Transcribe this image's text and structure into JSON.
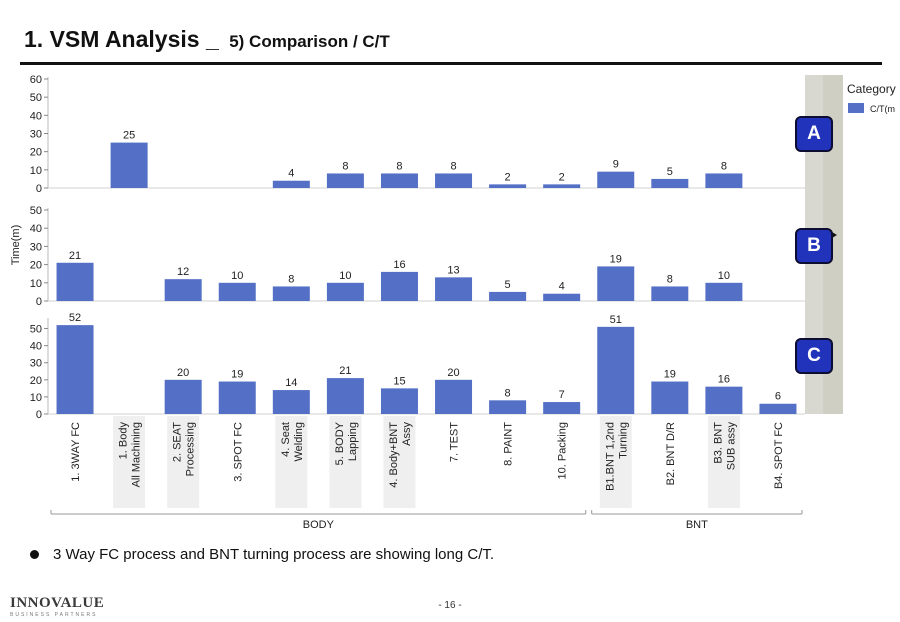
{
  "title": {
    "main": "1. VSM Analysis _",
    "sub": "5) Comparison / C/T"
  },
  "legend": {
    "title": "Category",
    "item": "C/T(m"
  },
  "panel_badges": [
    "A",
    "B",
    "C"
  ],
  "bullet": "3 Way FC process and BNT turning process are showing long C/T.",
  "footer": {
    "logo": "INNOVALUE",
    "tagline": "BUSINESS PARTNERS",
    "page": "- 16 -"
  },
  "colors": {
    "bar": "#5470c6",
    "badge": "#2233bb",
    "band": "#d8d8d0",
    "band_dark": "#cfcfc3"
  },
  "chart_data": {
    "type": "bar",
    "ylabel": "Time(m)",
    "categories": [
      "1. 3WAY FC",
      "1. Body All Machining",
      "2. SEAT Processing",
      "3. SPOT FC",
      "4. Seat Welding",
      "5. BODY Lapping",
      "4. Body+BNT Assy",
      "7. TEST",
      "8. PAINT",
      "10. Packing",
      "B1.BNT 1,2nd Turning",
      "B2. BNT D/R",
      "B3. BNT SUB assy",
      "B4. SPOT FC"
    ],
    "groups": [
      {
        "label": "BODY",
        "count": 10
      },
      {
        "label": "BNT",
        "count": 4
      }
    ],
    "panels": [
      {
        "name": "A",
        "ylim": [
          0,
          60
        ],
        "ticks": [
          0,
          10,
          20,
          30,
          40,
          50,
          60
        ],
        "values": [
          null,
          25,
          null,
          null,
          4,
          8,
          8,
          8,
          2,
          2,
          9,
          5,
          8,
          null
        ]
      },
      {
        "name": "B",
        "ylim": [
          0,
          50
        ],
        "ticks": [
          0,
          10,
          20,
          30,
          40,
          50
        ],
        "values": [
          21,
          null,
          12,
          10,
          8,
          10,
          16,
          13,
          5,
          4,
          19,
          8,
          10,
          null
        ]
      },
      {
        "name": "C",
        "ylim": [
          0,
          55
        ],
        "ticks": [
          0,
          10,
          20,
          30,
          40,
          50
        ],
        "values": [
          52,
          null,
          20,
          19,
          14,
          21,
          15,
          20,
          8,
          7,
          51,
          19,
          16,
          6
        ]
      }
    ]
  }
}
